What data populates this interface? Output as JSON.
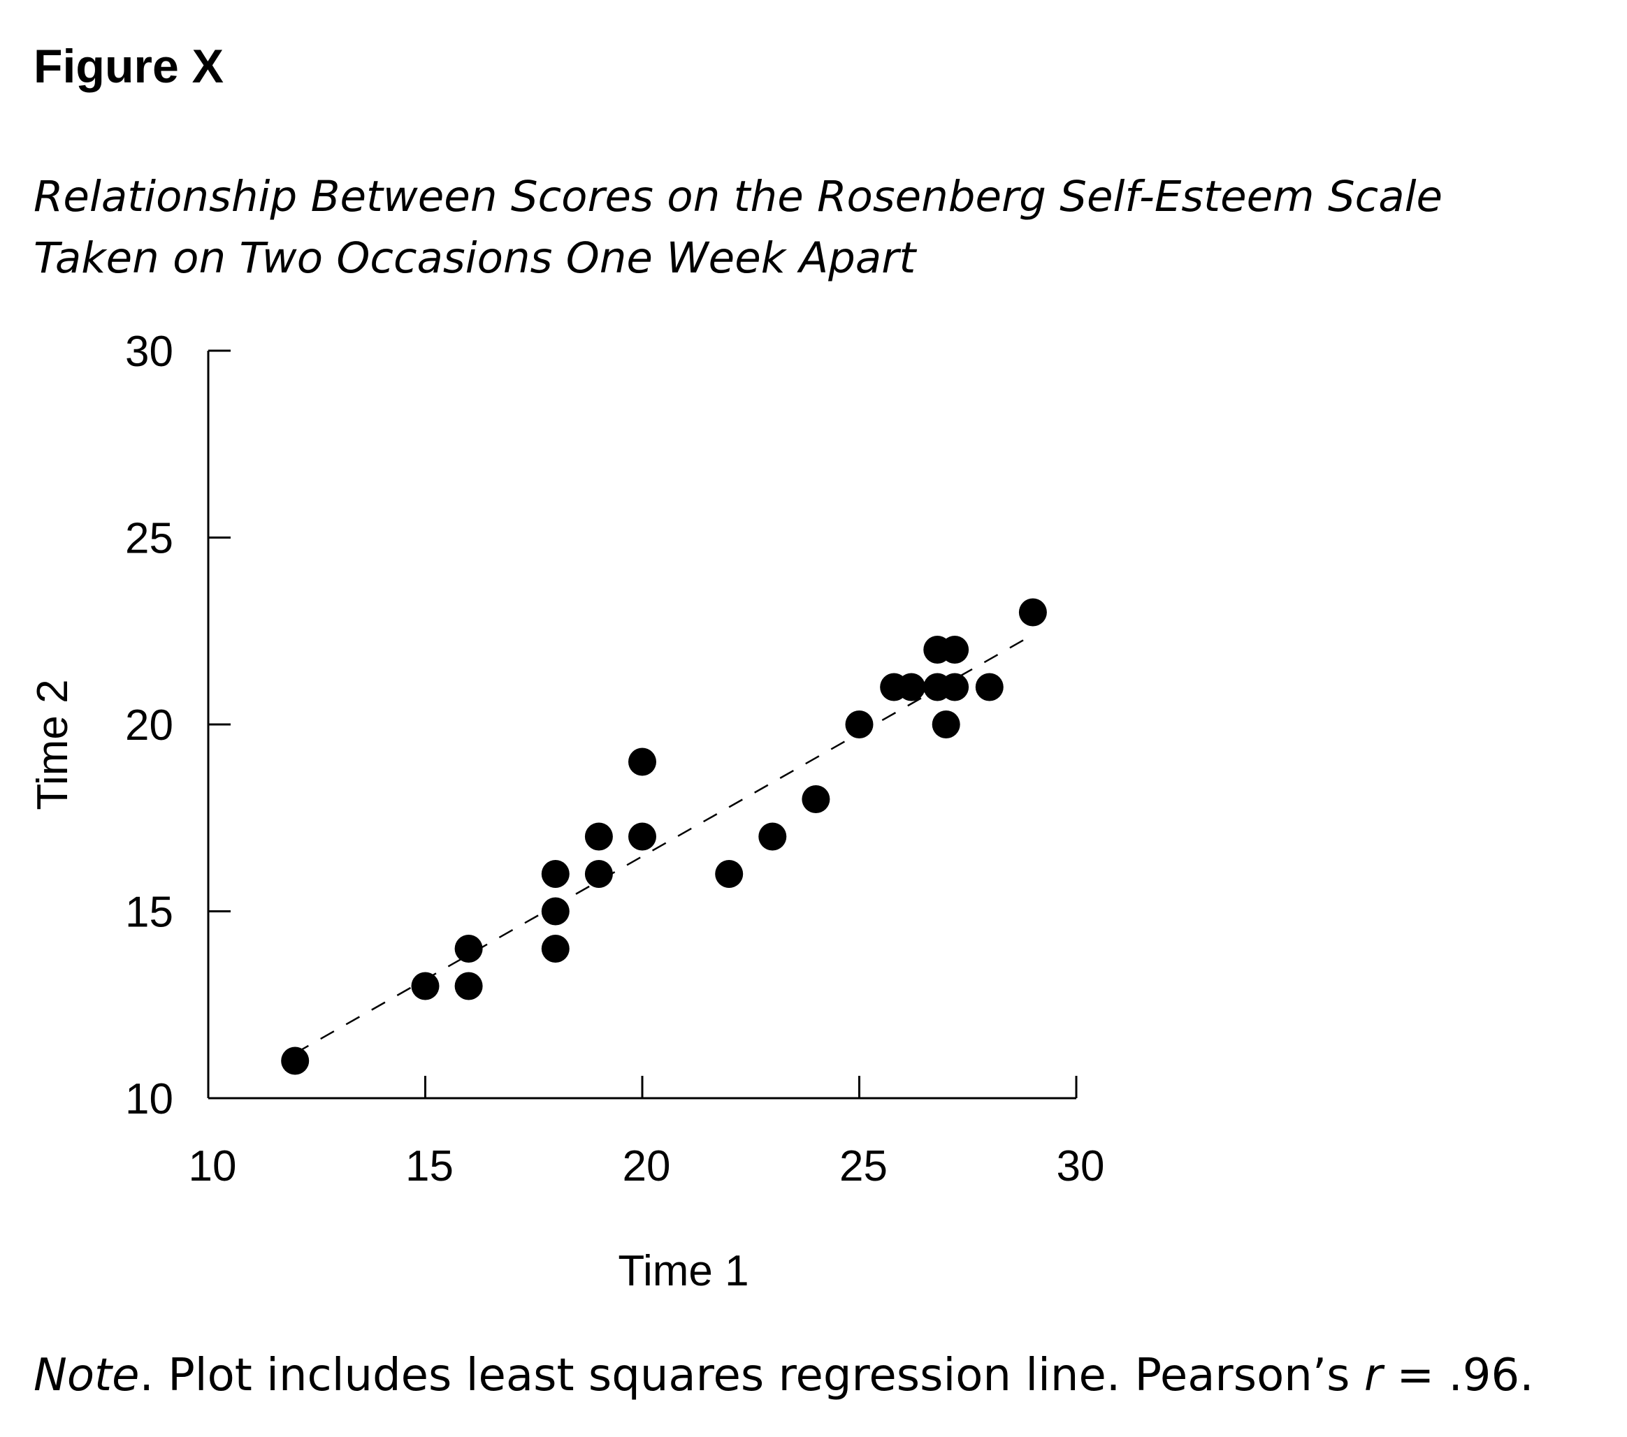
{
  "figure": {
    "label": "Figure X",
    "title_line1": "Relationship Between Scores on the Rosenberg Self-Esteem Scale",
    "title_line2": "Taken on Two Occasions One Week Apart"
  },
  "note": {
    "prefix": "Note",
    "text": ". Plot includes least squares regression line. Pearson’s ",
    "r_symbol": "r",
    "r_value": " = .96."
  },
  "chart_data": {
    "type": "scatter",
    "xlabel": "Time 1",
    "ylabel": "Time 2",
    "xlim": [
      10,
      30
    ],
    "ylim": [
      10,
      30
    ],
    "x_ticks": [
      10,
      15,
      20,
      25,
      30
    ],
    "y_ticks": [
      10,
      15,
      20,
      25,
      30
    ],
    "grid": false,
    "points": [
      {
        "x": 12,
        "y": 11
      },
      {
        "x": 15,
        "y": 13
      },
      {
        "x": 16,
        "y": 13
      },
      {
        "x": 16,
        "y": 14
      },
      {
        "x": 18,
        "y": 14
      },
      {
        "x": 18,
        "y": 15
      },
      {
        "x": 18,
        "y": 16
      },
      {
        "x": 19,
        "y": 16
      },
      {
        "x": 19,
        "y": 17
      },
      {
        "x": 20,
        "y": 17
      },
      {
        "x": 20,
        "y": 19
      },
      {
        "x": 22,
        "y": 16
      },
      {
        "x": 23,
        "y": 17
      },
      {
        "x": 24,
        "y": 18
      },
      {
        "x": 25,
        "y": 20
      },
      {
        "x": 25.8,
        "y": 21
      },
      {
        "x": 26.2,
        "y": 21
      },
      {
        "x": 26.8,
        "y": 21
      },
      {
        "x": 27.2,
        "y": 21
      },
      {
        "x": 26.8,
        "y": 22
      },
      {
        "x": 27.2,
        "y": 22
      },
      {
        "x": 27,
        "y": 20
      },
      {
        "x": 28,
        "y": 21
      },
      {
        "x": 29,
        "y": 23
      }
    ],
    "regression_line": {
      "style": "dashed",
      "x": [
        12,
        29
      ],
      "y": [
        11.2,
        22.4
      ]
    }
  }
}
